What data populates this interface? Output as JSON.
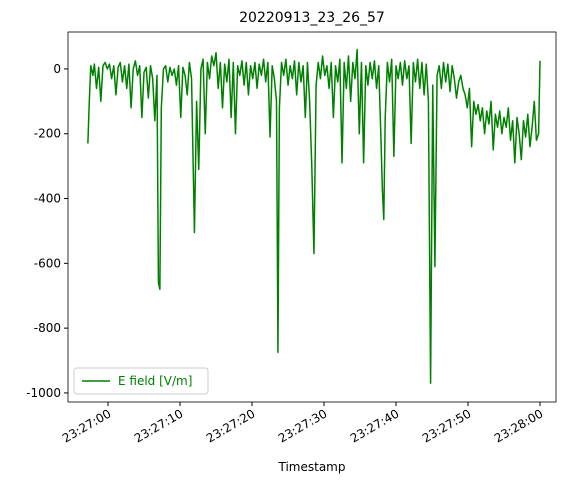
{
  "chart_data": {
    "type": "line",
    "title": "20220913_23_26_57",
    "x_label": "Timestamp",
    "x": [
      "23:26:57.2",
      "23:26:57.4",
      "23:26:57.6",
      "23:26:57.9",
      "23:26:58.1",
      "23:26:58.4",
      "23:26:58.7",
      "23:26:59.0",
      "23:26:59.3",
      "23:26:59.6",
      "23:26:59.9",
      "23:27:00.2",
      "23:27:00.5",
      "23:27:00.8",
      "23:27:01.1",
      "23:27:01.4",
      "23:27:01.7",
      "23:27:02.0",
      "23:27:02.3",
      "23:27:02.6",
      "23:27:02.9",
      "23:27:03.2",
      "23:27:03.5",
      "23:27:03.8",
      "23:27:04.1",
      "23:27:04.4",
      "23:27:04.7",
      "23:27:05.0",
      "23:27:05.3",
      "23:27:05.6",
      "23:27:05.9",
      "23:27:06.2",
      "23:27:06.5",
      "23:27:06.8",
      "23:27:07.0",
      "23:27:07.2",
      "23:27:07.4",
      "23:27:07.7",
      "23:27:08.0",
      "23:27:08.3",
      "23:27:08.6",
      "23:27:08.9",
      "23:27:09.2",
      "23:27:09.5",
      "23:27:09.8",
      "23:27:10.1",
      "23:27:10.4",
      "23:27:10.7",
      "23:27:11.0",
      "23:27:11.3",
      "23:27:11.6",
      "23:27:12.0",
      "23:27:12.3",
      "23:27:12.6",
      "23:27:12.9",
      "23:27:13.2",
      "23:27:13.5",
      "23:27:13.8",
      "23:27:14.1",
      "23:27:14.4",
      "23:27:14.7",
      "23:27:15.0",
      "23:27:15.3",
      "23:27:15.6",
      "23:27:15.9",
      "23:27:16.2",
      "23:27:16.5",
      "23:27:16.8",
      "23:27:17.1",
      "23:27:17.4",
      "23:27:17.7",
      "23:27:18.0",
      "23:27:18.3",
      "23:27:18.6",
      "23:27:18.9",
      "23:27:19.2",
      "23:27:19.5",
      "23:27:19.8",
      "23:27:20.1",
      "23:27:20.4",
      "23:27:20.7",
      "23:27:21.0",
      "23:27:21.3",
      "23:27:21.6",
      "23:27:21.9",
      "23:27:22.2",
      "23:27:22.5",
      "23:27:22.8",
      "23:27:23.1",
      "23:27:23.4",
      "23:27:23.6",
      "23:27:23.8",
      "23:27:24.1",
      "23:27:24.4",
      "23:27:24.7",
      "23:27:25.0",
      "23:27:25.3",
      "23:27:25.6",
      "23:27:25.9",
      "23:27:26.2",
      "23:27:26.5",
      "23:27:26.8",
      "23:27:27.1",
      "23:27:27.4",
      "23:27:27.7",
      "23:27:28.0",
      "23:27:28.3",
      "23:27:28.6",
      "23:27:28.9",
      "23:27:29.2",
      "23:27:29.5",
      "23:27:29.8",
      "23:27:30.1",
      "23:27:30.4",
      "23:27:30.7",
      "23:27:31.0",
      "23:27:31.3",
      "23:27:31.6",
      "23:27:31.9",
      "23:27:32.2",
      "23:27:32.5",
      "23:27:32.8",
      "23:27:33.1",
      "23:27:33.4",
      "23:27:33.7",
      "23:27:34.0",
      "23:27:34.3",
      "23:27:34.6",
      "23:27:34.9",
      "23:27:35.2",
      "23:27:35.5",
      "23:27:35.8",
      "23:27:36.1",
      "23:27:36.4",
      "23:27:36.7",
      "23:27:37.0",
      "23:27:37.3",
      "23:27:37.6",
      "23:27:37.9",
      "23:27:38.1",
      "23:27:38.3",
      "23:27:38.5",
      "23:27:38.8",
      "23:27:39.1",
      "23:27:39.4",
      "23:27:39.7",
      "23:27:40.0",
      "23:27:40.3",
      "23:27:40.6",
      "23:27:40.9",
      "23:27:41.2",
      "23:27:41.5",
      "23:27:41.8",
      "23:27:42.1",
      "23:27:42.4",
      "23:27:42.7",
      "23:27:43.0",
      "23:27:43.3",
      "23:27:43.6",
      "23:27:43.9",
      "23:27:44.2",
      "23:27:44.5",
      "23:27:44.8",
      "23:27:45.1",
      "23:27:45.4",
      "23:27:45.7",
      "23:27:46.0",
      "23:27:46.3",
      "23:27:46.6",
      "23:27:46.9",
      "23:27:47.2",
      "23:27:47.5",
      "23:27:47.8",
      "23:27:48.1",
      "23:27:48.4",
      "23:27:48.7",
      "23:27:49.0",
      "23:27:49.3",
      "23:27:49.6",
      "23:27:49.9",
      "23:27:50.2",
      "23:27:50.5",
      "23:27:50.8",
      "23:27:51.1",
      "23:27:51.4",
      "23:27:51.7",
      "23:27:52.0",
      "23:27:52.3",
      "23:27:52.6",
      "23:27:52.9",
      "23:27:53.2",
      "23:27:53.5",
      "23:27:53.8",
      "23:27:54.1",
      "23:27:54.4",
      "23:27:54.7",
      "23:27:55.0",
      "23:27:55.3",
      "23:27:55.6",
      "23:27:55.9",
      "23:27:56.2",
      "23:27:56.5",
      "23:27:56.8",
      "23:27:57.1",
      "23:27:57.4",
      "23:27:57.7",
      "23:27:58.0",
      "23:27:58.3",
      "23:27:58.6",
      "23:27:58.9",
      "23:27:59.2",
      "23:27:59.5",
      "23:27:59.8",
      "23:28:00.0"
    ],
    "series": [
      {
        "name": "E field [V/m]",
        "color": "#008000",
        "values": [
          -230,
          -100,
          10,
          -20,
          15,
          -60,
          5,
          -100,
          10,
          20,
          0,
          15,
          -30,
          10,
          -80,
          5,
          20,
          -40,
          10,
          -60,
          15,
          -120,
          0,
          25,
          -20,
          10,
          -150,
          -10,
          5,
          -90,
          10,
          -30,
          -160,
          -20,
          -660,
          -680,
          -120,
          0,
          10,
          -40,
          5,
          -20,
          0,
          -50,
          10,
          -150,
          5,
          -20,
          -80,
          20,
          -30,
          -505,
          -100,
          -310,
          0,
          30,
          -200,
          20,
          -30,
          40,
          10,
          50,
          -60,
          20,
          -120,
          15,
          -40,
          30,
          -150,
          20,
          -200,
          10,
          -20,
          25,
          -50,
          20,
          -80,
          10,
          -30,
          20,
          -60,
          15,
          -20,
          30,
          -40,
          20,
          -210,
          10,
          -30,
          -100,
          -875,
          -120,
          20,
          -20,
          30,
          -50,
          10,
          -30,
          25,
          -80,
          20,
          -40,
          10,
          -150,
          20,
          -100,
          -300,
          -570,
          -50,
          20,
          -30,
          40,
          -20,
          10,
          -60,
          20,
          -150,
          10,
          -40,
          30,
          -290,
          20,
          -60,
          40,
          -100,
          20,
          -30,
          60,
          -200,
          20,
          -290,
          10,
          -50,
          20,
          -30,
          25,
          -60,
          10,
          -210,
          -370,
          -465,
          -150,
          20,
          -40,
          30,
          -270,
          10,
          -30,
          20,
          -50,
          25,
          -30,
          10,
          -230,
          20,
          -40,
          30,
          -60,
          20,
          -80,
          15,
          -100,
          -970,
          -50,
          -610,
          -20,
          10,
          -60,
          20,
          -40,
          15,
          -70,
          10,
          -30,
          -90,
          -40,
          -20,
          -60,
          -80,
          -120,
          -60,
          -240,
          -100,
          -140,
          -110,
          -160,
          -120,
          -200,
          -130,
          -170,
          -100,
          -250,
          -140,
          -180,
          -130,
          -200,
          -150,
          -180,
          -120,
          -220,
          -160,
          -290,
          -150,
          -200,
          -280,
          -160,
          -210,
          -140,
          -240,
          -180,
          -100,
          -220,
          -200,
          25
        ]
      }
    ],
    "xlim": [
      "23:26:54.44",
      "23:28:02.22"
    ],
    "xticks": [
      "23:27:00",
      "23:27:10",
      "23:27:20",
      "23:27:30",
      "23:27:40",
      "23:27:50",
      "23:28:00"
    ],
    "ylim": [
      -1028,
      114
    ],
    "yticks": [
      -1000,
      -800,
      -600,
      -400,
      -200,
      0
    ],
    "legend": "lower left",
    "grid": false
  }
}
